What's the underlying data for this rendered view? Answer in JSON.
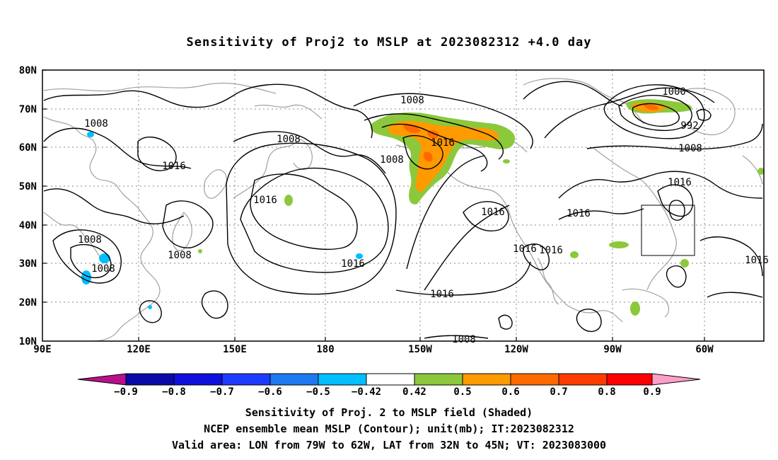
{
  "title": "Sensitivity of Proj2 to MSLP at 2023082312 +4.0 day",
  "map": {
    "lat_ticks": [
      "80N",
      "70N",
      "60N",
      "50N",
      "40N",
      "30N",
      "20N",
      "10N"
    ],
    "lon_ticks": [
      "90E",
      "120E",
      "150E",
      "180",
      "150W",
      "120W",
      "90W",
      "60W"
    ],
    "contour_labels": [
      "1008",
      "1008",
      "1016",
      "1016",
      "1008",
      "1008",
      "1016",
      "1016",
      "1008",
      "1016",
      "1016",
      "1008",
      "1000",
      "992",
      "1008",
      "1016",
      "1016",
      "1016",
      "1016",
      "1016",
      "1008",
      "1008"
    ],
    "contour_color": "#000000",
    "coastline_color": "#a0a0a0",
    "grid": "dotted"
  },
  "colorbar": {
    "labels": [
      "−0.9",
      "−0.8",
      "−0.7",
      "−0.6",
      "−0.5",
      "−0.42",
      "0.42",
      "0.5",
      "0.6",
      "0.7",
      "0.8",
      "0.9"
    ],
    "colors": [
      "#b8108a",
      "#0a0aa8",
      "#1010dc",
      "#1e3cff",
      "#1e78f0",
      "#00beff",
      "#ffffff",
      "#8cc83c",
      "#ff9a00",
      "#ff6a00",
      "#ff3c00",
      "#ff0000",
      "#ff9ec8"
    ]
  },
  "captions": {
    "line1": "Sensitivity of Proj. 2 to MSLP field (Shaded)",
    "line2": "NCEP ensemble mean MSLP (Contour); unit(mb); IT:2023082312",
    "line3": "Valid area: LON from 79W to 62W, LAT from 32N to 45N; VT: 2023083000"
  },
  "valid_box": {
    "lon_from": "79W",
    "lon_to": "62W",
    "lat_from": "32N",
    "lat_to": "45N"
  }
}
